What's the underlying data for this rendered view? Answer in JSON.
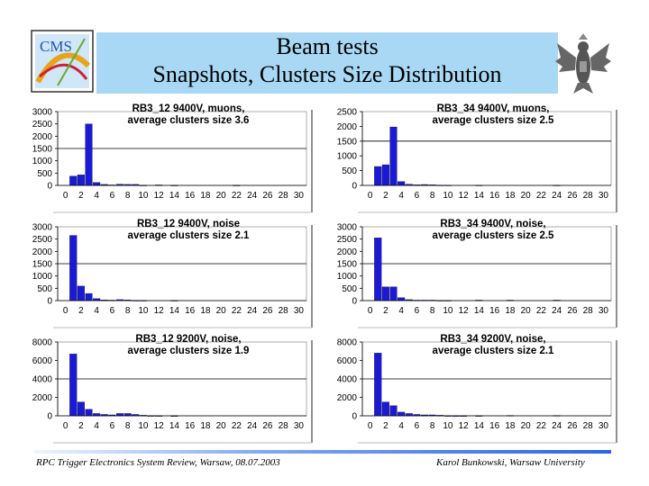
{
  "header": {
    "title_line1": "Beam tests",
    "title_line2": "Snapshots, Clusters Size Distribution",
    "logo_text": "CMS"
  },
  "footer": {
    "left": "RPC Trigger Electronics System Review, Warsaw, 08.07.2003",
    "right": "Karol Bunkowski, Warsaw University"
  },
  "colors": {
    "bar": "#1a1ad6",
    "title_bg": "#a8d8f4"
  },
  "chart_data": [
    {
      "type": "bar",
      "title_line1": "RB3_12 9400V, muons,",
      "title_line2": "average clusters size 3.6",
      "x": [
        0,
        1,
        2,
        3,
        4,
        5,
        6,
        7,
        8,
        9,
        10,
        11,
        12,
        13,
        14,
        15,
        16,
        17,
        18,
        19,
        20,
        21,
        22,
        23,
        24,
        25,
        26,
        27,
        28,
        29,
        30
      ],
      "values": [
        0,
        380,
        430,
        2500,
        120,
        40,
        20,
        50,
        40,
        40,
        10,
        0,
        20,
        0,
        10,
        0,
        0,
        0,
        0,
        0,
        0,
        0,
        10,
        0,
        0,
        0,
        0,
        0,
        0,
        0,
        0
      ],
      "ylim": [
        0,
        3000
      ],
      "yticks": [
        0,
        500,
        1000,
        1500,
        2000,
        2500,
        3000
      ],
      "xticks": [
        0,
        2,
        4,
        6,
        8,
        10,
        12,
        14,
        16,
        18,
        20,
        22,
        24,
        26,
        28,
        30
      ]
    },
    {
      "type": "bar",
      "title_line1": "RB3_34 9400V, muons,",
      "title_line2": "average clusters size 2.5",
      "x": [
        0,
        1,
        2,
        3,
        4,
        5,
        6,
        7,
        8,
        9,
        10,
        11,
        12,
        13,
        14,
        15,
        16,
        17,
        18,
        19,
        20,
        21,
        22,
        23,
        24,
        25,
        26,
        27,
        28,
        29,
        30
      ],
      "values": [
        0,
        640,
        700,
        1980,
        130,
        40,
        20,
        30,
        20,
        10,
        10,
        0,
        0,
        0,
        10,
        0,
        0,
        0,
        0,
        0,
        0,
        0,
        0,
        0,
        10,
        0,
        0,
        0,
        0,
        0,
        0
      ],
      "ylim": [
        0,
        2500
      ],
      "yticks": [
        0,
        500,
        1000,
        1500,
        2000,
        2500
      ],
      "xticks": [
        0,
        2,
        4,
        6,
        8,
        10,
        12,
        14,
        16,
        18,
        20,
        22,
        24,
        26,
        28,
        30
      ]
    },
    {
      "type": "bar",
      "title_line1": "RB3_12 9400V, noise",
      "title_line2": "average clusters size 2.1",
      "x": [
        0,
        1,
        2,
        3,
        4,
        5,
        6,
        7,
        8,
        9,
        10,
        11,
        12,
        13,
        14,
        15,
        16,
        17,
        18,
        19,
        20,
        21,
        22,
        23,
        24,
        25,
        26,
        27,
        28,
        29,
        30
      ],
      "values": [
        0,
        2650,
        590,
        290,
        80,
        30,
        20,
        40,
        30,
        10,
        10,
        0,
        0,
        0,
        10,
        0,
        0,
        0,
        0,
        0,
        0,
        0,
        0,
        0,
        0,
        0,
        0,
        0,
        0,
        0,
        0
      ],
      "ylim": [
        0,
        3000
      ],
      "yticks": [
        0,
        500,
        1000,
        1500,
        2000,
        2500,
        3000
      ],
      "xticks": [
        0,
        2,
        4,
        6,
        8,
        10,
        12,
        14,
        16,
        18,
        20,
        22,
        24,
        26,
        28,
        30
      ]
    },
    {
      "type": "bar",
      "title_line1": "RB3_34 9400V, noise,",
      "title_line2": "average clusters size 2.5",
      "x": [
        0,
        1,
        2,
        3,
        4,
        5,
        6,
        7,
        8,
        9,
        10,
        11,
        12,
        13,
        14,
        15,
        16,
        17,
        18,
        19,
        20,
        21,
        22,
        23,
        24,
        25,
        26,
        27,
        28,
        29,
        30
      ],
      "values": [
        0,
        2550,
        560,
        560,
        120,
        40,
        20,
        20,
        20,
        10,
        10,
        0,
        0,
        0,
        20,
        0,
        0,
        0,
        20,
        0,
        0,
        0,
        0,
        0,
        20,
        0,
        0,
        0,
        0,
        0,
        0
      ],
      "ylim": [
        0,
        3000
      ],
      "yticks": [
        0,
        500,
        1000,
        1500,
        2000,
        2500,
        3000
      ],
      "xticks": [
        0,
        2,
        4,
        6,
        8,
        10,
        12,
        14,
        16,
        18,
        20,
        22,
        24,
        26,
        28,
        30
      ]
    },
    {
      "type": "bar",
      "title_line1": "RB3_12 9200V, noise,",
      "title_line2": "average clusters size 1.9",
      "x": [
        0,
        1,
        2,
        3,
        4,
        5,
        6,
        7,
        8,
        9,
        10,
        11,
        12,
        13,
        14,
        15,
        16,
        17,
        18,
        19,
        20,
        21,
        22,
        23,
        24,
        25,
        26,
        27,
        28,
        29,
        30
      ],
      "values": [
        0,
        6700,
        1500,
        700,
        250,
        150,
        100,
        250,
        250,
        150,
        60,
        20,
        20,
        0,
        10,
        0,
        0,
        0,
        0,
        0,
        0,
        0,
        0,
        0,
        0,
        0,
        0,
        0,
        0,
        0,
        0
      ],
      "ylim": [
        0,
        8000
      ],
      "yticks": [
        0,
        2000,
        4000,
        6000,
        8000
      ],
      "xticks": [
        0,
        2,
        4,
        6,
        8,
        10,
        12,
        14,
        16,
        18,
        20,
        22,
        24,
        26,
        28,
        30
      ]
    },
    {
      "type": "bar",
      "title_line1": "RB3_34 9200V, noise,",
      "title_line2": "average clusters size 2.1",
      "x": [
        0,
        1,
        2,
        3,
        4,
        5,
        6,
        7,
        8,
        9,
        10,
        11,
        12,
        13,
        14,
        15,
        16,
        17,
        18,
        19,
        20,
        21,
        22,
        23,
        24,
        25,
        26,
        27,
        28,
        29,
        30
      ],
      "values": [
        0,
        6800,
        1500,
        1100,
        400,
        250,
        150,
        100,
        100,
        60,
        20,
        10,
        10,
        0,
        20,
        0,
        0,
        0,
        40,
        0,
        0,
        0,
        0,
        0,
        40,
        0,
        0,
        0,
        0,
        0,
        0
      ],
      "ylim": [
        0,
        8000
      ],
      "yticks": [
        0,
        2000,
        4000,
        6000,
        8000
      ],
      "xticks": [
        0,
        2,
        4,
        6,
        8,
        10,
        12,
        14,
        16,
        18,
        20,
        22,
        24,
        26,
        28,
        30
      ]
    }
  ]
}
